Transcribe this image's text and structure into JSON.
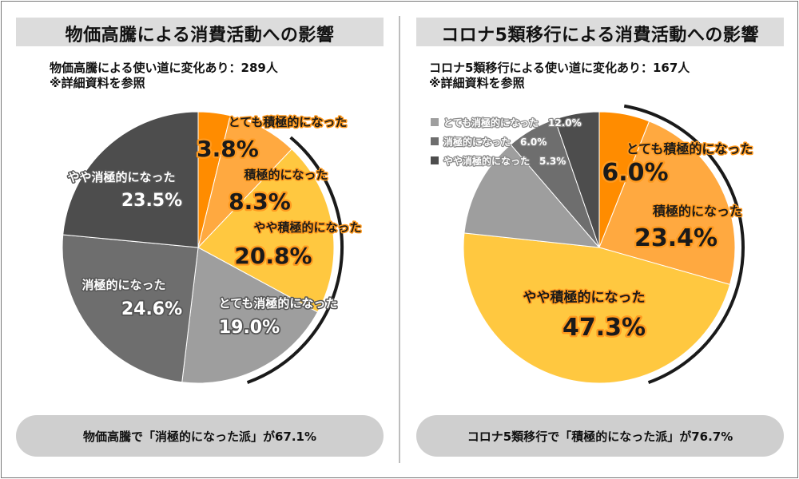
{
  "left": {
    "title": "物価高騰による消費活動への影響",
    "subtitle_line1": "物価高騰による使い道に変化あり：289人",
    "subtitle_line2": "※詳細資料を参照",
    "summary": "物価高騰で「消極的になった派」が67.1%"
  },
  "right": {
    "title": "コロナ5類移行による消費活動への影響",
    "subtitle_line1": "コロナ5類移行による使い道に変化あり：167人",
    "subtitle_line2": "※詳細資料を参照",
    "summary": "コロナ5類移行で「積極的になった派」が76.7%"
  },
  "colors": {
    "very_positive": "#ff8c00",
    "positive": "#ffa940",
    "somewhat_positive": "#ffc840",
    "very_negative": "#9e9e9e",
    "negative": "#6e6e6e",
    "somewhat_negative": "#4d4d4d",
    "outline_orange": "#ff9a1f",
    "outline_dark": "#555555"
  },
  "chart_data": [
    {
      "type": "pie",
      "title": "物価高騰による消費活動への影響",
      "categories": [
        "とても積極的になった",
        "積極的になった",
        "やや積極的になった",
        "とても消極的になった",
        "消極的になった",
        "やや消極的になった"
      ],
      "values": [
        3.8,
        8.3,
        20.8,
        19.0,
        24.6,
        23.5
      ],
      "value_labels": [
        "3.8%",
        "8.3%",
        "20.8%",
        "19.0%",
        "24.6%",
        "23.5%"
      ],
      "start": "12 o'clock, clockwise"
    },
    {
      "type": "pie",
      "title": "コロナ5類移行による消費活動への影響",
      "categories": [
        "とても積極的になった",
        "積極的になった",
        "やや積極的になった",
        "とても消極的になった",
        "消極的になった",
        "やや消極的になった"
      ],
      "values": [
        6.0,
        23.4,
        47.3,
        12.0,
        6.0,
        5.3
      ],
      "value_labels": [
        "6.0%",
        "23.4%",
        "47.3%",
        "12.0%",
        "6.0%",
        "5.3%"
      ],
      "start": "12 o'clock, clockwise",
      "legend_entries": [
        "とても消極的になった　12.0%",
        "消極的になった　6.0%",
        "やや消極的になった　5.3%"
      ],
      "legend_position": "top-left"
    }
  ]
}
